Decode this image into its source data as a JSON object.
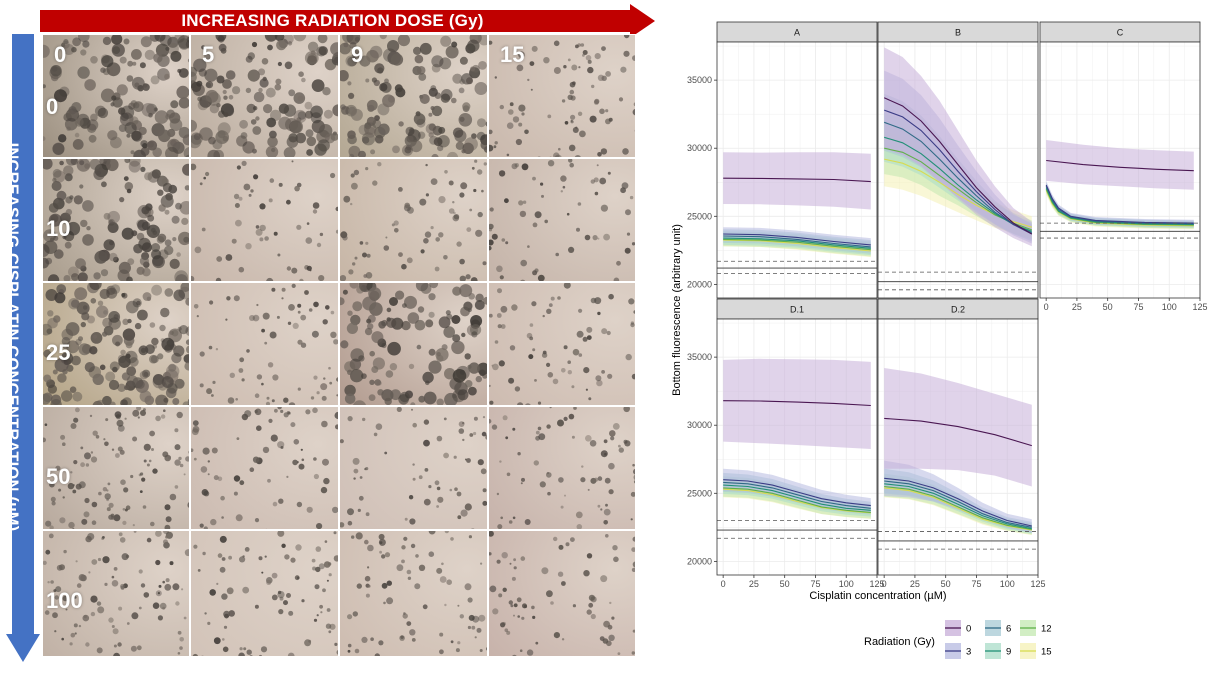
{
  "figure": {
    "top_arrow_label": "INCREASING RADIATION DOSE (Gy)",
    "left_arrow_label": "INCREASING CISPLATIN CONCENTRATION (µM)",
    "arrow_colors": {
      "top": "#c00000",
      "left": "#4472c4"
    },
    "radiation_doses": [
      "0",
      "5",
      "9",
      "15"
    ],
    "cisplatin_concentrations": [
      "0",
      "10",
      "25",
      "50",
      "100"
    ]
  },
  "chart_data": {
    "type": "line",
    "facets": [
      "A",
      "B",
      "C",
      "D.1",
      "D.2"
    ],
    "xlabel": "Cisplatin concentration (µM)",
    "ylabel": "Bottom fluorescence (arbitrary unit)",
    "x_ticks": [
      "0",
      "25",
      "50",
      "75",
      "100",
      "125"
    ],
    "y_ticks": [
      "20000",
      "25000",
      "30000",
      "35000"
    ],
    "xlim": [
      -5,
      125
    ],
    "ylim": [
      19000,
      37800
    ],
    "legend": {
      "title": "Radiation (Gy)",
      "position": "bottom",
      "entries": [
        {
          "label": "0",
          "color": "#4a1752",
          "band": "#c7aed8"
        },
        {
          "label": "3",
          "color": "#3b3d86",
          "band": "#b6b9e0"
        },
        {
          "label": "6",
          "color": "#2f6a86",
          "band": "#a7c9d4"
        },
        {
          "label": "9",
          "color": "#229077",
          "band": "#a9dcc8"
        },
        {
          "label": "12",
          "color": "#5fb04a",
          "band": "#c3e8b0"
        },
        {
          "label": "15",
          "color": "#d8dc50",
          "band": "#f4f0b4"
        }
      ]
    },
    "panels": [
      {
        "name": "A",
        "hlines": {
          "solid": 21200,
          "dashed": [
            21700,
            20800
          ]
        },
        "series": [
          {
            "dose": "0",
            "x": [
              0,
              30,
              60,
              90,
              120
            ],
            "y": [
              27800,
              27780,
              27750,
              27700,
              27550
            ],
            "band": [
              1900,
              1900,
              1950,
              2000,
              2050
            ]
          },
          {
            "dose": "3",
            "x": [
              0,
              30,
              60,
              90,
              120
            ],
            "y": [
              23700,
              23650,
              23450,
              23150,
              22900
            ],
            "band": [
              500,
              500,
              500,
              500,
              500
            ]
          },
          {
            "dose": "6",
            "x": [
              0,
              30,
              60,
              90,
              120
            ],
            "y": [
              23550,
              23500,
              23300,
              23000,
              22750
            ],
            "band": [
              500,
              500,
              500,
              500,
              500
            ]
          },
          {
            "dose": "9",
            "x": [
              0,
              30,
              60,
              90,
              120
            ],
            "y": [
              23400,
              23350,
              23200,
              22900,
              22650
            ],
            "band": [
              500,
              500,
              500,
              500,
              500
            ]
          },
          {
            "dose": "12",
            "x": [
              0,
              30,
              60,
              90,
              120
            ],
            "y": [
              23300,
              23250,
              23100,
              22800,
              22550
            ],
            "band": [
              500,
              500,
              500,
              500,
              500
            ]
          },
          {
            "dose": "15",
            "x": [
              0,
              30,
              60,
              90,
              120
            ],
            "y": [
              23250,
              23200,
              23000,
              22700,
              22450
            ],
            "band": [
              450,
              450,
              450,
              450,
              450
            ]
          }
        ]
      },
      {
        "name": "B",
        "hlines": {
          "solid": 20200,
          "dashed": [
            20900,
            19600
          ]
        },
        "series": [
          {
            "dose": "0",
            "x": [
              0,
              15,
              30,
              45,
              60,
              75,
              90,
              105,
              120
            ],
            "y": [
              33700,
              33100,
              32000,
              30500,
              28800,
              27100,
              25700,
              24500,
              23700
            ],
            "band": [
              3700,
              3600,
              3300,
              3000,
              2500,
              2000,
              1500,
              1100,
              900
            ]
          },
          {
            "dose": "3",
            "x": [
              0,
              15,
              30,
              45,
              60,
              75,
              90,
              105,
              120
            ],
            "y": [
              32800,
              32300,
              31300,
              29900,
              28300,
              26800,
              25500,
              24400,
              23700
            ],
            "band": [
              2900,
              2800,
              2600,
              2300,
              1900,
              1500,
              1100,
              800,
              700
            ]
          },
          {
            "dose": "6",
            "x": [
              0,
              15,
              30,
              45,
              60,
              75,
              90,
              105,
              120
            ],
            "y": [
              31900,
              31400,
              30500,
              29200,
              27800,
              26500,
              25300,
              24400,
              23800
            ],
            "band": [
              2100,
              2050,
              1900,
              1700,
              1400,
              1100,
              850,
              700,
              650
            ]
          },
          {
            "dose": "9",
            "x": [
              0,
              15,
              30,
              45,
              60,
              75,
              90,
              105,
              120
            ],
            "y": [
              30800,
              30400,
              29600,
              28500,
              27300,
              26200,
              25200,
              24400,
              23900
            ],
            "band": [
              1800,
              1750,
              1600,
              1400,
              1150,
              950,
              800,
              700,
              650
            ]
          },
          {
            "dose": "12",
            "x": [
              0,
              15,
              30,
              45,
              60,
              75,
              90,
              105,
              120
            ],
            "y": [
              30000,
              29700,
              29000,
              28000,
              27000,
              26000,
              25100,
              24500,
              24000
            ],
            "band": [
              1900,
              1850,
              1700,
              1500,
              1200,
              1000,
              850,
              750,
              700
            ]
          },
          {
            "dose": "15",
            "x": [
              0,
              15,
              30,
              45,
              60,
              75,
              90,
              105,
              120
            ],
            "y": [
              29200,
              28900,
              28300,
              27500,
              26600,
              25800,
              25100,
              24600,
              24200
            ],
            "band": [
              2000,
              1950,
              1800,
              1600,
              1300,
              1100,
              950,
              850,
              800
            ]
          }
        ]
      },
      {
        "name": "C",
        "hlines": {
          "solid": 23900,
          "dashed": [
            24500,
            23400
          ]
        },
        "series": [
          {
            "dose": "0",
            "x": [
              0,
              30,
              60,
              90,
              120
            ],
            "y": [
              29100,
              28800,
              28600,
              28450,
              28350
            ],
            "band": [
              1500,
              1450,
              1400,
              1400,
              1400
            ]
          },
          {
            "dose": "3",
            "x": [
              0,
              5,
              10,
              20,
              40,
              80,
              120
            ],
            "y": [
              27300,
              26300,
              25600,
              25000,
              24700,
              24550,
              24500
            ],
            "band": [
              300,
              280,
              260,
              250,
              250,
              250,
              250
            ]
          },
          {
            "dose": "6",
            "x": [
              0,
              5,
              10,
              20,
              40,
              80,
              120
            ],
            "y": [
              27200,
              26200,
              25500,
              24950,
              24650,
              24500,
              24450
            ],
            "band": [
              300,
              280,
              260,
              250,
              250,
              250,
              250
            ]
          },
          {
            "dose": "9",
            "x": [
              0,
              5,
              10,
              20,
              40,
              80,
              120
            ],
            "y": [
              27100,
              26100,
              25400,
              24900,
              24600,
              24450,
              24400
            ],
            "band": [
              300,
              280,
              260,
              250,
              250,
              250,
              250
            ]
          },
          {
            "dose": "12",
            "x": [
              0,
              5,
              10,
              20,
              40,
              80,
              120
            ],
            "y": [
              27000,
              26000,
              25350,
              24850,
              24550,
              24400,
              24350
            ],
            "band": [
              300,
              280,
              260,
              250,
              250,
              250,
              250
            ]
          },
          {
            "dose": "15",
            "x": [
              0,
              5,
              10,
              20,
              40,
              80,
              120
            ],
            "y": [
              26900,
              25900,
              25300,
              24800,
              24500,
              24350,
              24300
            ],
            "band": [
              300,
              280,
              260,
              250,
              250,
              250,
              250
            ]
          }
        ]
      },
      {
        "name": "D.1",
        "hlines": {
          "solid": 22300,
          "dashed": [
            23000,
            21700
          ]
        },
        "series": [
          {
            "dose": "0",
            "x": [
              0,
              30,
              60,
              90,
              120
            ],
            "y": [
              31800,
              31780,
              31700,
              31600,
              31450
            ],
            "band": [
              3000,
              3100,
              3150,
              3200,
              3200
            ]
          },
          {
            "dose": "3",
            "x": [
              0,
              20,
              40,
              60,
              80,
              100,
              120
            ],
            "y": [
              26000,
              25900,
              25600,
              25100,
              24600,
              24300,
              24100
            ],
            "band": [
              800,
              780,
              750,
              700,
              650,
              600,
              550
            ]
          },
          {
            "dose": "6",
            "x": [
              0,
              20,
              40,
              60,
              80,
              100,
              120
            ],
            "y": [
              25800,
              25700,
              25400,
              24900,
              24400,
              24100,
              23900
            ],
            "band": [
              700,
              680,
              650,
              600,
              550,
              500,
              480
            ]
          },
          {
            "dose": "9",
            "x": [
              0,
              20,
              40,
              60,
              80,
              100,
              120
            ],
            "y": [
              25600,
              25500,
              25200,
              24700,
              24200,
              23900,
              23750
            ],
            "band": [
              650,
              630,
              600,
              560,
              520,
              480,
              460
            ]
          },
          {
            "dose": "12",
            "x": [
              0,
              20,
              40,
              60,
              80,
              100,
              120
            ],
            "y": [
              25400,
              25300,
              25000,
              24500,
              24000,
              23750,
              23600
            ],
            "band": [
              650,
              630,
              600,
              560,
              520,
              480,
              460
            ]
          },
          {
            "dose": "15",
            "x": [
              0,
              20,
              40,
              60,
              80,
              100,
              120
            ],
            "y": [
              25300,
              25200,
              24900,
              24400,
              23950,
              23700,
              23550
            ],
            "band": [
              600,
              580,
              560,
              520,
              480,
              450,
              430
            ]
          }
        ]
      },
      {
        "name": "D.2",
        "hlines": {
          "solid": 21500,
          "dashed": [
            22200,
            20900
          ]
        },
        "series": [
          {
            "dose": "0",
            "x": [
              0,
              30,
              60,
              90,
              120
            ],
            "y": [
              30500,
              30300,
              29900,
              29300,
              28500
            ],
            "band": [
              3700,
              3500,
              3200,
              3000,
              3000
            ]
          },
          {
            "dose": "3",
            "x": [
              0,
              20,
              40,
              60,
              80,
              100,
              120
            ],
            "y": [
              26100,
              25900,
              25400,
              24600,
              23700,
              23000,
              22600
            ],
            "band": [
              1300,
              1200,
              1000,
              800,
              600,
              500,
              500
            ]
          },
          {
            "dose": "6",
            "x": [
              0,
              20,
              40,
              60,
              80,
              100,
              120
            ],
            "y": [
              25900,
              25700,
              25200,
              24400,
              23500,
              22850,
              22500
            ],
            "band": [
              900,
              850,
              750,
              600,
              450,
              400,
              400
            ]
          },
          {
            "dose": "9",
            "x": [
              0,
              20,
              40,
              60,
              80,
              100,
              120
            ],
            "y": [
              25700,
              25500,
              25000,
              24200,
              23350,
              22750,
              22400
            ],
            "band": [
              750,
              700,
              620,
              520,
              420,
              380,
              380
            ]
          },
          {
            "dose": "12",
            "x": [
              0,
              20,
              40,
              60,
              80,
              100,
              120
            ],
            "y": [
              25500,
              25300,
              24800,
              24000,
              23200,
              22650,
              22350
            ],
            "band": [
              750,
              700,
              620,
              520,
              420,
              380,
              380
            ]
          },
          {
            "dose": "15",
            "x": [
              0,
              20,
              40,
              60,
              80,
              100,
              120
            ],
            "y": [
              25400,
              25200,
              24700,
              23900,
              23100,
              22600,
              22300
            ],
            "band": [
              700,
              650,
              580,
              480,
              400,
              370,
              370
            ]
          }
        ]
      }
    ]
  }
}
